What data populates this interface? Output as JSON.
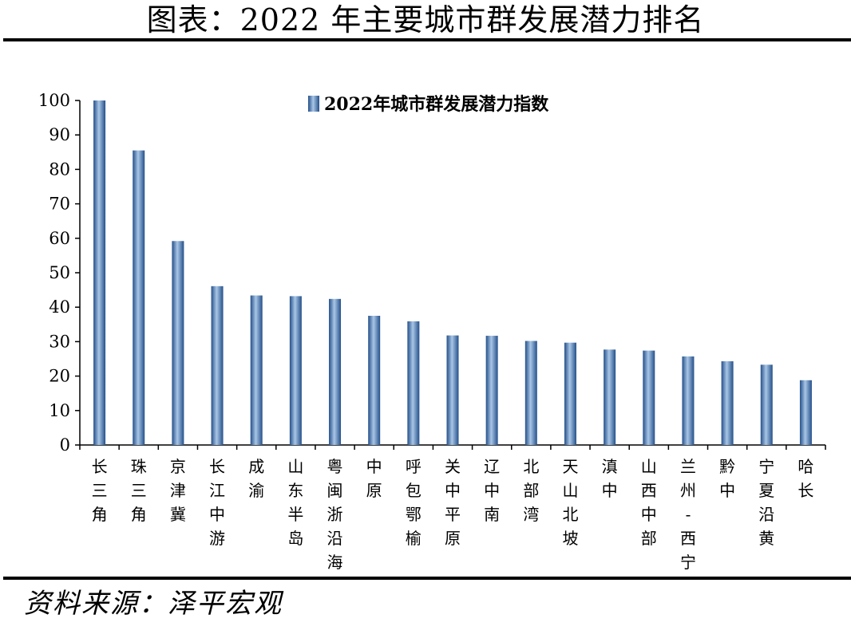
{
  "header": {
    "title": "图表：2022 年主要城市群发展潜力排名"
  },
  "footer": {
    "source": "资料来源：泽平宏观"
  },
  "chart_data": {
    "type": "bar",
    "title": "",
    "xlabel": "",
    "ylabel": "",
    "ylim": [
      0,
      100
    ],
    "yticks": [
      0,
      10,
      20,
      30,
      40,
      50,
      60,
      70,
      80,
      90,
      100
    ],
    "grid": false,
    "legend_position": "top-center",
    "colors": {
      "bar": "#4a7ab5",
      "bar_light": "#a9c6e6",
      "bar_dark": "#24508a",
      "axis": "#000000"
    },
    "categories": [
      "长三角",
      "珠三角",
      "京津冀",
      "长江中游",
      "成渝",
      "山东半岛",
      "粤闽浙沿海",
      "中原",
      "呼包鄂榆",
      "关中平原",
      "辽中南",
      "北部湾",
      "天山北坡",
      "滇中",
      "山西中部",
      "兰州-西宁",
      "黔中",
      "宁夏沿黄",
      "哈长"
    ],
    "series": [
      {
        "name": "2022年城市群发展潜力指数",
        "values": [
          100,
          85.5,
          59.2,
          46.1,
          43.4,
          43.2,
          42.4,
          37.5,
          35.9,
          31.8,
          31.7,
          30.2,
          29.7,
          27.7,
          27.4,
          25.7,
          24.3,
          23.3,
          18.8
        ]
      }
    ]
  }
}
